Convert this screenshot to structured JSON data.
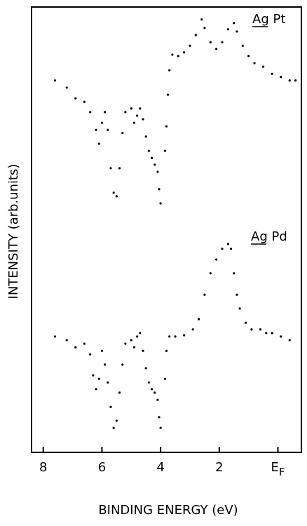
{
  "chart_data": {
    "type": "scatter",
    "x_label": "BINDING ENERGY (eV)",
    "y_label": "INTENSITY (arb.units)",
    "xlim": [
      8.4,
      -0.8
    ],
    "ylim": [
      0,
      100
    ],
    "xticks": [
      8,
      6,
      4,
      2,
      {
        "value": 0,
        "label": "E",
        "subscript": "F"
      }
    ],
    "series": [
      {
        "name": "Ag Pt",
        "color": "#000000",
        "x": [
          7.6,
          7.2,
          6.9,
          6.6,
          6.4,
          6.2,
          6.1,
          6.0,
          5.9,
          5.8,
          5.7,
          5.6,
          5.5,
          5.4,
          5.3,
          5.2,
          5.0,
          4.9,
          4.8,
          4.7,
          4.6,
          4.5,
          4.4,
          4.3,
          4.2,
          4.1,
          4.05,
          4.0,
          3.85,
          3.8,
          3.75,
          3.7,
          3.6,
          3.4,
          3.2,
          3.0,
          2.8,
          2.6,
          2.5,
          2.3,
          2.1,
          1.9,
          1.7,
          1.5,
          1.4,
          1.2,
          1.0,
          0.8,
          0.5,
          0.2,
          -0.1,
          -0.4,
          -0.6
        ],
        "values": [
          83.5,
          81.9,
          79.5,
          78.7,
          76.4,
          72.4,
          69.3,
          74.0,
          76.4,
          72.4,
          63.8,
          58.3,
          57.5,
          63.8,
          71.7,
          76.4,
          77.2,
          74.0,
          75.6,
          77.2,
          74.8,
          70.9,
          67.7,
          66.1,
          64.6,
          63.0,
          59.1,
          55.9,
          67.7,
          73.2,
          80.3,
          85.8,
          89.3,
          89.0,
          89.8,
          91.3,
          93.7,
          97.2,
          95.3,
          92.1,
          90.6,
          92.1,
          95.0,
          96.4,
          94.5,
          91.3,
          89.0,
          87.4,
          86.6,
          85.0,
          84.3,
          83.5,
          83.5
        ]
      },
      {
        "name": "Ag Pd",
        "color": "#000000",
        "x": [
          7.6,
          7.2,
          6.9,
          6.6,
          6.4,
          6.3,
          6.2,
          6.1,
          6.0,
          5.9,
          5.8,
          5.7,
          5.6,
          5.5,
          5.4,
          5.3,
          5.2,
          5.0,
          4.9,
          4.8,
          4.7,
          4.6,
          4.5,
          4.4,
          4.3,
          4.2,
          4.1,
          4.05,
          4.0,
          3.85,
          3.8,
          3.7,
          3.5,
          3.2,
          2.9,
          2.7,
          2.5,
          2.3,
          2.1,
          1.9,
          1.7,
          1.6,
          1.5,
          1.4,
          1.3,
          1.1,
          0.9,
          0.6,
          0.4,
          0.2,
          -0.1,
          -0.4
        ],
        "values": [
          26.0,
          25.2,
          23.6,
          24.4,
          22.0,
          17.3,
          14.2,
          16.5,
          22.8,
          19.7,
          15.7,
          10.2,
          5.5,
          7.1,
          13.4,
          19.7,
          24.4,
          25.2,
          23.6,
          26.0,
          26.8,
          22.8,
          18.9,
          15.7,
          14.2,
          13.4,
          11.8,
          7.9,
          5.5,
          16.5,
          22.8,
          26.0,
          26.0,
          26.3,
          27.6,
          29.9,
          35.4,
          40.2,
          43.3,
          45.7,
          46.8,
          45.7,
          40.2,
          35.4,
          32.3,
          29.1,
          27.6,
          27.6,
          26.8,
          26.8,
          26.0,
          25.2
        ]
      }
    ]
  }
}
